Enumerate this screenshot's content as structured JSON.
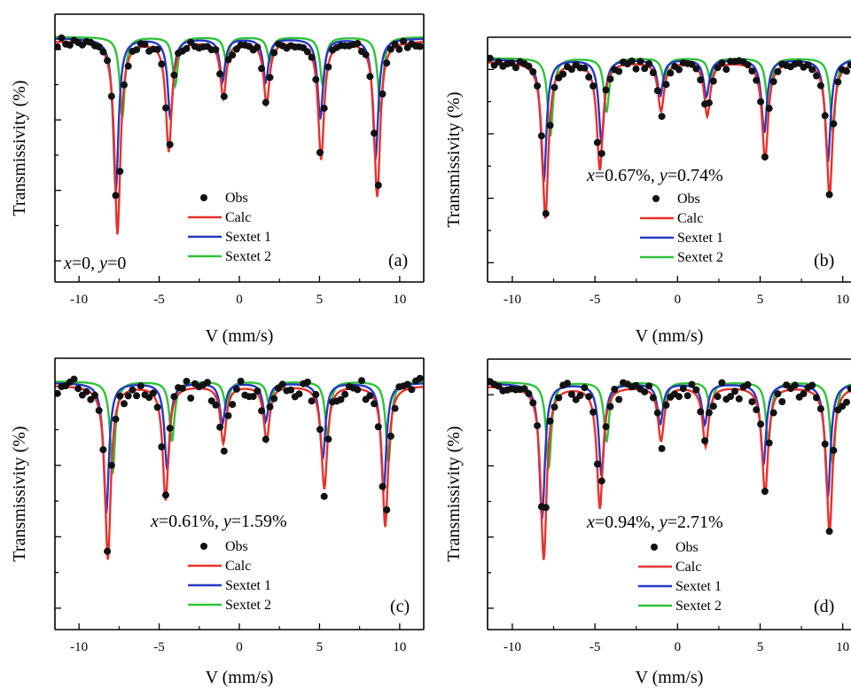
{
  "figure": {
    "legend_labels": [
      "Obs",
      "Calc",
      "Sextet 1",
      "Sextet 2"
    ],
    "colors": {
      "obs": "#111111",
      "calc": "#e8312d",
      "sextet1": "#2638c4",
      "sextet2": "#2fc23a",
      "axis": "#000000"
    }
  },
  "chart_data": [
    {
      "type": "scatter",
      "panel_label": "(a)",
      "annotation": "x=0,  y=0",
      "annotation_parts": [
        {
          "t": "x",
          "i": true
        },
        {
          "t": "=0,  "
        },
        {
          "t": "y",
          "i": true
        },
        {
          "t": "=0"
        }
      ],
      "xlabel": "V (mm/s)",
      "ylabel": "Transmissivity (%)",
      "xlim": [
        -11.5,
        11.5
      ],
      "xticks": [
        "-10",
        "-5",
        "0",
        "5",
        "10"
      ],
      "series": [
        {
          "name": "Obs",
          "kind": "points",
          "peaks": [
            [
              -7.6,
              0.7
            ],
            [
              -4.4,
              0.42
            ],
            [
              -1.0,
              0.22
            ],
            [
              1.7,
              0.23
            ],
            [
              5.1,
              0.44
            ],
            [
              8.6,
              0.58
            ]
          ],
          "baseline": 0.9
        },
        {
          "name": "Calc",
          "kind": "line",
          "peaks": [
            [
              -7.6,
              0.72
            ],
            [
              -4.4,
              0.41
            ],
            [
              -1.0,
              0.21
            ],
            [
              1.7,
              0.23
            ],
            [
              5.1,
              0.44
            ],
            [
              8.6,
              0.58
            ]
          ],
          "baseline": 0.9
        },
        {
          "name": "Sextet 1",
          "kind": "line",
          "peaks": [
            [
              -7.7,
              0.57
            ],
            [
              -4.3,
              0.3
            ],
            [
              -1.05,
              0.16
            ],
            [
              1.65,
              0.16
            ],
            [
              5.05,
              0.3
            ],
            [
              8.5,
              0.45
            ]
          ],
          "baseline": 0.91
        },
        {
          "name": "Sextet 2",
          "kind": "line",
          "peaks": [
            [
              -7.3,
              0.3
            ],
            [
              -4.0,
              0.18
            ],
            [
              -0.8,
              0.09
            ],
            [
              1.9,
              0.09
            ],
            [
              5.2,
              0.18
            ],
            [
              8.8,
              0.28
            ]
          ],
          "baseline": 0.915
        }
      ]
    },
    {
      "type": "scatter",
      "panel_label": "(b)",
      "annotation": "x=0.67%, y=0.74%",
      "annotation_parts": [
        {
          "t": "x",
          "i": true
        },
        {
          "t": "=0.67%, "
        },
        {
          "t": "y",
          "i": true
        },
        {
          "t": "=0.74%"
        }
      ],
      "xlabel": "V (mm/s)",
      "ylabel": "Transmissivity (%)",
      "xlim": [
        -11.5,
        10.5
      ],
      "xticks": [
        "-10",
        "-5",
        "0",
        "5",
        "10"
      ],
      "series": [
        {
          "name": "Obs",
          "kind": "points",
          "peaks": [
            [
              -8.0,
              0.62
            ],
            [
              -4.7,
              0.45
            ],
            [
              -1.0,
              0.22
            ],
            [
              1.8,
              0.22
            ],
            [
              5.3,
              0.4
            ],
            [
              9.2,
              0.56
            ]
          ],
          "baseline": 0.9
        },
        {
          "name": "Calc",
          "kind": "line",
          "peaks": [
            [
              -8.0,
              0.64
            ],
            [
              -4.7,
              0.44
            ],
            [
              -1.0,
              0.2
            ],
            [
              1.8,
              0.22
            ],
            [
              5.3,
              0.4
            ],
            [
              9.2,
              0.55
            ]
          ],
          "baseline": 0.9
        },
        {
          "name": "Sextet 1",
          "kind": "line",
          "peaks": [
            [
              -8.1,
              0.5
            ],
            [
              -4.6,
              0.34
            ],
            [
              -1.05,
              0.15
            ],
            [
              1.75,
              0.15
            ],
            [
              5.25,
              0.3
            ],
            [
              9.1,
              0.42
            ]
          ],
          "baseline": 0.91
        },
        {
          "name": "Sextet 2",
          "kind": "line",
          "peaks": [
            [
              -7.7,
              0.32
            ],
            [
              -4.3,
              0.22
            ],
            [
              -0.8,
              0.09
            ],
            [
              2.0,
              0.09
            ],
            [
              5.5,
              0.2
            ],
            [
              9.4,
              0.3
            ]
          ],
          "baseline": 0.915
        }
      ]
    },
    {
      "type": "scatter",
      "panel_label": "(c)",
      "annotation": "x=0.61%, y=1.59%",
      "annotation_parts": [
        {
          "t": "x",
          "i": true
        },
        {
          "t": "=0.61%, "
        },
        {
          "t": "y",
          "i": true
        },
        {
          "t": "=1.59%"
        }
      ],
      "xlabel": "V (mm/s)",
      "ylabel": "Transmissivity (%)",
      "xlim": [
        -11.5,
        11.5
      ],
      "xticks": [
        "-10",
        "-5",
        "0",
        "5",
        "10"
      ],
      "series": [
        {
          "name": "Obs",
          "kind": "points",
          "peaks": [
            [
              -8.2,
              0.62
            ],
            [
              -4.6,
              0.42
            ],
            [
              -1.0,
              0.22
            ],
            [
              1.7,
              0.2
            ],
            [
              5.3,
              0.38
            ],
            [
              9.1,
              0.52
            ]
          ],
          "baseline": 0.9
        },
        {
          "name": "Calc",
          "kind": "line",
          "peaks": [
            [
              -8.2,
              0.64
            ],
            [
              -4.6,
              0.42
            ],
            [
              -1.0,
              0.21
            ],
            [
              1.7,
              0.2
            ],
            [
              5.3,
              0.38
            ],
            [
              9.1,
              0.52
            ]
          ],
          "baseline": 0.9
        },
        {
          "name": "Sextet 1",
          "kind": "line",
          "peaks": [
            [
              -8.3,
              0.48
            ],
            [
              -4.5,
              0.32
            ],
            [
              -1.05,
              0.15
            ],
            [
              1.65,
              0.14
            ],
            [
              5.2,
              0.28
            ],
            [
              9.0,
              0.4
            ]
          ],
          "baseline": 0.91
        },
        {
          "name": "Sextet 2",
          "kind": "line",
          "peaks": [
            [
              -7.9,
              0.34
            ],
            [
              -4.2,
              0.22
            ],
            [
              -0.8,
              0.1
            ],
            [
              1.9,
              0.1
            ],
            [
              5.5,
              0.2
            ],
            [
              9.3,
              0.3
            ]
          ],
          "baseline": 0.915
        }
      ]
    },
    {
      "type": "scatter",
      "panel_label": "(d)",
      "annotation": "x=0.94%, y=2.71%",
      "annotation_parts": [
        {
          "t": "x",
          "i": true
        },
        {
          "t": "=0.94%, "
        },
        {
          "t": "y",
          "i": true
        },
        {
          "t": "=2.71%"
        }
      ],
      "xlabel": "V (mm/s)",
      "ylabel": "Transmissivity (%)",
      "xlim": [
        -11.5,
        10.5
      ],
      "xticks": [
        "-10",
        "-5",
        "0",
        "5",
        "10"
      ],
      "series": [
        {
          "name": "Obs",
          "kind": "points",
          "peaks": [
            [
              -8.1,
              0.62
            ],
            [
              -4.7,
              0.45
            ],
            [
              -1.0,
              0.22
            ],
            [
              1.7,
              0.22
            ],
            [
              5.3,
              0.4
            ],
            [
              9.2,
              0.55
            ]
          ],
          "baseline": 0.9
        },
        {
          "name": "Calc",
          "kind": "line",
          "peaks": [
            [
              -8.1,
              0.64
            ],
            [
              -4.7,
              0.45
            ],
            [
              -1.0,
              0.2
            ],
            [
              1.7,
              0.22
            ],
            [
              5.3,
              0.4
            ],
            [
              9.2,
              0.54
            ]
          ],
          "baseline": 0.9
        },
        {
          "name": "Sextet 1",
          "kind": "line",
          "peaks": [
            [
              -8.2,
              0.5
            ],
            [
              -4.6,
              0.34
            ],
            [
              -1.05,
              0.15
            ],
            [
              1.65,
              0.15
            ],
            [
              5.2,
              0.3
            ],
            [
              9.1,
              0.42
            ]
          ],
          "baseline": 0.91
        },
        {
          "name": "Sextet 2",
          "kind": "line",
          "peaks": [
            [
              -7.8,
              0.32
            ],
            [
              -4.3,
              0.22
            ],
            [
              -0.8,
              0.1
            ],
            [
              2.0,
              0.1
            ],
            [
              5.5,
              0.22
            ],
            [
              9.4,
              0.3
            ]
          ],
          "baseline": 0.915
        }
      ]
    }
  ]
}
